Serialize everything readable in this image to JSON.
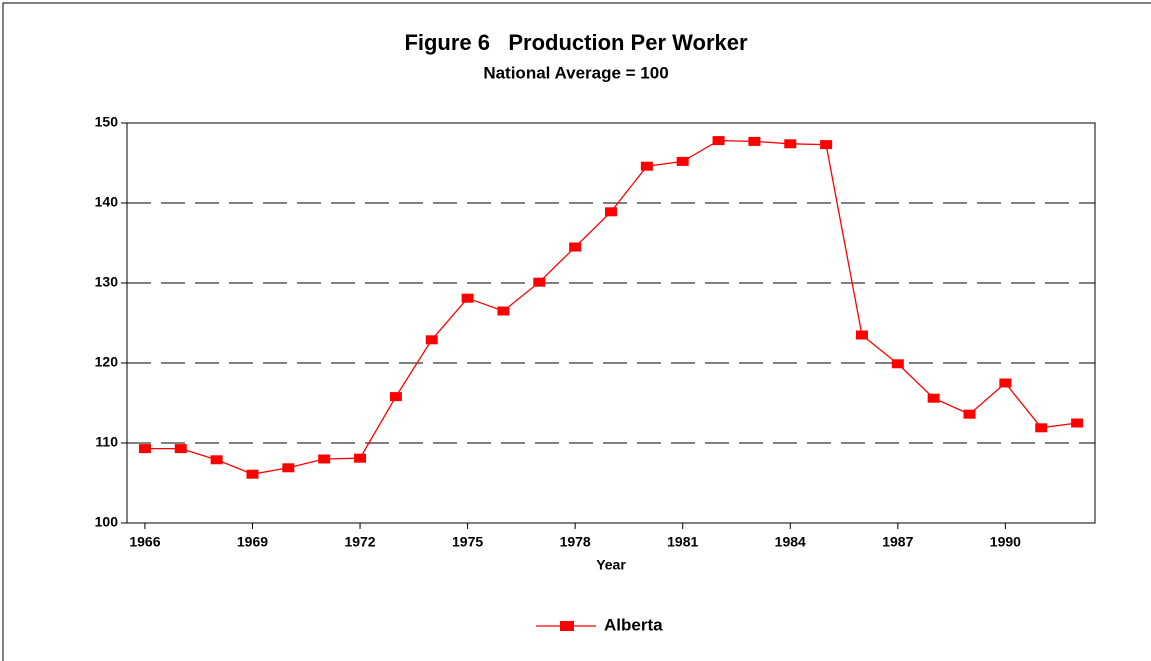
{
  "chart_data": {
    "type": "line",
    "title": "Figure 6   Production Per Worker",
    "subtitle": "National Average = 100",
    "x_label": "Year",
    "x": [
      1966,
      1967,
      1968,
      1969,
      1970,
      1971,
      1972,
      1973,
      1974,
      1975,
      1976,
      1977,
      1978,
      1979,
      1980,
      1981,
      1982,
      1983,
      1984,
      1985,
      1986,
      1987,
      1988,
      1989,
      1990,
      1991,
      1992
    ],
    "series": [
      {
        "name": "Alberta",
        "color": "#ff0000",
        "values": [
          109.3,
          109.3,
          107.9,
          106.1,
          106.9,
          108.0,
          108.1,
          115.8,
          122.9,
          128.1,
          126.5,
          130.1,
          134.5,
          138.9,
          144.6,
          145.2,
          147.8,
          147.7,
          147.4,
          147.3,
          123.5,
          119.9,
          115.6,
          113.6,
          117.5,
          111.9,
          112.5
        ]
      }
    ],
    "xlim": [
      1965.5,
      1992.5
    ],
    "xticks": [
      1966,
      1969,
      1972,
      1975,
      1978,
      1981,
      1984,
      1987,
      1990
    ],
    "ylim": [
      100,
      150
    ],
    "yticks": [
      100,
      110,
      120,
      130,
      140,
      150
    ],
    "grid": true,
    "legend": "bottom"
  }
}
